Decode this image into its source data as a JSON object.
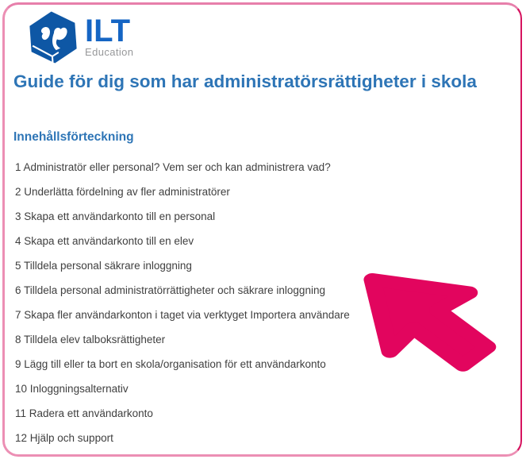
{
  "logo": {
    "brand": "ILT",
    "sub": "Education"
  },
  "page_title": "Guide för dig som har administratörsrättigheter i skola",
  "toc": {
    "heading": "Innehållsförteckning",
    "items": [
      "1 Administratör eller personal? Vem ser och kan administrera vad?",
      "2 Underlätta fördelning av fler administratörer",
      "3 Skapa ett användarkonto till en personal",
      "4 Skapa ett användarkonto till en elev",
      "5 Tilldela personal säkrare inloggning",
      "6 Tilldela personal administratörrättigheter och säkrare inloggning",
      "7 Skapa fler användarkonton i taget via verktyget Importera användare",
      "8 Tilldela elev talboksrättigheter",
      "9 Lägg till eller ta bort en skola/organisation för ett användarkonto",
      "10 Inloggningsalternativ",
      "11 Radera ett användarkonto",
      "12 Hjälp och support"
    ]
  },
  "icons": {
    "logo_cube": "ilt-cube-logo",
    "pointer": "mouse-pointer-arrow"
  },
  "colors": {
    "logo_blue": "#0e57a5",
    "brand_text_blue": "#1565c4",
    "education_gray": "#97989a",
    "heading_blue": "#2e75b6",
    "body_text_gray": "#3f3f3f",
    "arrow_pink": "#e2055e",
    "border_pink_light": "#e77fab",
    "border_pink_dark": "#d6145f"
  }
}
